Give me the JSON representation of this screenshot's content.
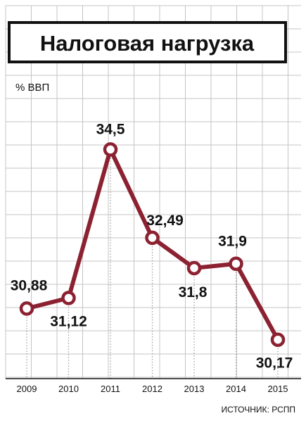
{
  "chart_data": {
    "type": "line",
    "title": "Налоговая нагрузка",
    "unit_label": "% ВВП",
    "source": "ИСТОЧНИК: РСПП",
    "categories": [
      "2009",
      "2010",
      "2011",
      "2012",
      "2013",
      "2014",
      "2015"
    ],
    "series": [
      {
        "values": [
          30.88,
          31.12,
          34.5,
          32.49,
          31.8,
          31.9,
          30.17
        ],
        "labels": [
          "30,88",
          "31,12",
          "34,5",
          "32,49",
          "31,8",
          "31,9",
          "30,17"
        ],
        "color": "#8c2131"
      }
    ],
    "ylim": [
      29.3,
      35.5
    ],
    "grid": true
  }
}
